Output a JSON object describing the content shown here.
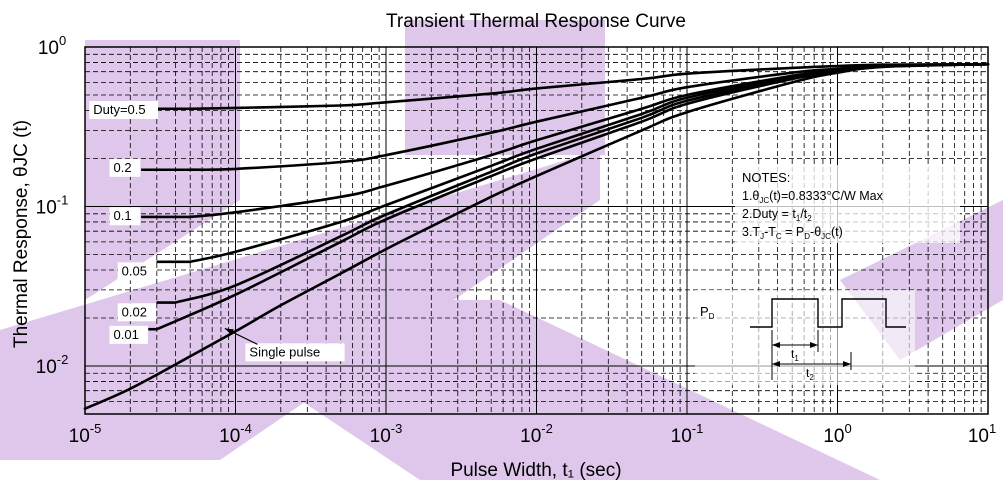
{
  "chart_data": {
    "type": "line",
    "title": "Transient Thermal Response Curve",
    "xlabel": "Pulse Width, t₁ (sec)",
    "ylabel": "Thermal Response, θJC (t)",
    "x_scale": "log",
    "y_scale": "log",
    "xlim": [
      1e-05,
      10
    ],
    "ylim": [
      0.005,
      1
    ],
    "grid": true,
    "x_ticks": [
      {
        "value": 1e-05,
        "base": "10",
        "exp": "-5"
      },
      {
        "value": 0.0001,
        "base": "10",
        "exp": "-4"
      },
      {
        "value": 0.001,
        "base": "10",
        "exp": "-3"
      },
      {
        "value": 0.01,
        "base": "10",
        "exp": "-2"
      },
      {
        "value": 0.1,
        "base": "10",
        "exp": "-1"
      },
      {
        "value": 1,
        "base": "10",
        "exp": "0"
      },
      {
        "value": 10,
        "base": "10",
        "exp": "1"
      }
    ],
    "y_ticks": [
      {
        "value": 0.01,
        "base": "10",
        "exp": "-2"
      },
      {
        "value": 0.1,
        "base": "10",
        "exp": "-1"
      },
      {
        "value": 1,
        "base": "10",
        "exp": "0"
      }
    ],
    "series": [
      {
        "name": "Duty=0.5",
        "label": "Duty=0.5",
        "label_at": [
          1.1e-05,
          0.38
        ],
        "x": [
          5e-05,
          0.0001,
          0.0005,
          0.001,
          0.005,
          0.01,
          0.05,
          0.1,
          0.5,
          1,
          2,
          10
        ],
        "y": [
          0.41,
          0.415,
          0.43,
          0.45,
          0.51,
          0.55,
          0.63,
          0.68,
          0.74,
          0.76,
          0.775,
          0.78
        ]
      },
      {
        "name": "0.2",
        "label": "0.2",
        "label_at": [
          1.5e-05,
          0.165
        ],
        "x": [
          5e-05,
          0.0001,
          0.0005,
          0.001,
          0.005,
          0.01,
          0.05,
          0.1,
          0.5,
          1,
          2,
          10
        ],
        "y": [
          0.17,
          0.172,
          0.19,
          0.21,
          0.29,
          0.34,
          0.48,
          0.56,
          0.69,
          0.73,
          0.765,
          0.78
        ]
      },
      {
        "name": "0.1",
        "label": "0.1",
        "label_at": [
          1.5e-05,
          0.082
        ],
        "x": [
          5e-05,
          0.0001,
          0.0005,
          0.001,
          0.005,
          0.01,
          0.05,
          0.1,
          0.5,
          1,
          2,
          10
        ],
        "y": [
          0.086,
          0.092,
          0.115,
          0.135,
          0.21,
          0.26,
          0.41,
          0.5,
          0.66,
          0.72,
          0.76,
          0.78
        ]
      },
      {
        "name": "0.05",
        "label": "0.05",
        "label_at": [
          1.7e-05,
          0.037
        ],
        "x": [
          5e-05,
          0.0001,
          0.0005,
          0.001,
          0.005,
          0.01,
          0.05,
          0.1,
          0.5,
          1,
          2,
          10
        ],
        "y": [
          0.045,
          0.052,
          0.08,
          0.102,
          0.18,
          0.23,
          0.38,
          0.48,
          0.65,
          0.71,
          0.76,
          0.78
        ]
      },
      {
        "name": "0.02",
        "label": "0.02",
        "label_at": [
          1.7e-05,
          0.0205
        ],
        "x": [
          4e-05,
          0.0001,
          0.0005,
          0.001,
          0.005,
          0.01,
          0.05,
          0.1,
          0.5,
          1,
          2,
          10
        ],
        "y": [
          0.025,
          0.032,
          0.065,
          0.089,
          0.165,
          0.215,
          0.36,
          0.46,
          0.64,
          0.7,
          0.755,
          0.78
        ]
      },
      {
        "name": "0.01",
        "label": "0.01",
        "label_at": [
          1.5e-05,
          0.0148
        ],
        "x": [
          3e-05,
          0.0001,
          0.0005,
          0.001,
          0.005,
          0.01,
          0.05,
          0.1,
          0.5,
          1,
          2,
          10
        ],
        "y": [
          0.017,
          0.028,
          0.06,
          0.083,
          0.155,
          0.2,
          0.34,
          0.44,
          0.63,
          0.7,
          0.755,
          0.78
        ]
      },
      {
        "name": "Single pulse",
        "label": "Single pulse",
        "label_at": [
          0.00012,
          0.0115
        ],
        "x": [
          1e-05,
          2e-05,
          5e-05,
          0.0001,
          0.0002,
          0.0005,
          0.001,
          0.002,
          0.005,
          0.01,
          0.05,
          0.1,
          0.5,
          1,
          2,
          10
        ],
        "y": [
          0.0054,
          0.0072,
          0.0115,
          0.0165,
          0.024,
          0.038,
          0.054,
          0.075,
          0.115,
          0.155,
          0.3,
          0.39,
          0.6,
          0.69,
          0.75,
          0.78
        ]
      }
    ],
    "single_pulse_arrow_to": [
      8.5e-05,
      0.0172
    ],
    "notes": {
      "title": "NOTES:",
      "line1": {
        "a": "1.θ",
        "sub": "JC",
        "b": "(t)=0.8333°C/W Max"
      },
      "line2": {
        "a": "2.Duty = t",
        "sub1": "1",
        "mid": "/t",
        "sub2": "2"
      },
      "line3": {
        "a": "3.T",
        "sub1": "J",
        "mid1": "-T",
        "sub2": "C",
        "mid2": " = P",
        "sub3": "D",
        "b": "-θ",
        "sub4": "JC",
        "c": "(t)"
      }
    },
    "pulse_diagram": {
      "pd_label": "P",
      "pd_sub": "D",
      "t1_label": "t",
      "t1_sub": "1",
      "t2_label": "t",
      "t2_sub": "2"
    },
    "colors": {
      "line": "#000000",
      "grid": "#000000",
      "watermark": "#c49bdc",
      "background": "#ffffff"
    }
  }
}
